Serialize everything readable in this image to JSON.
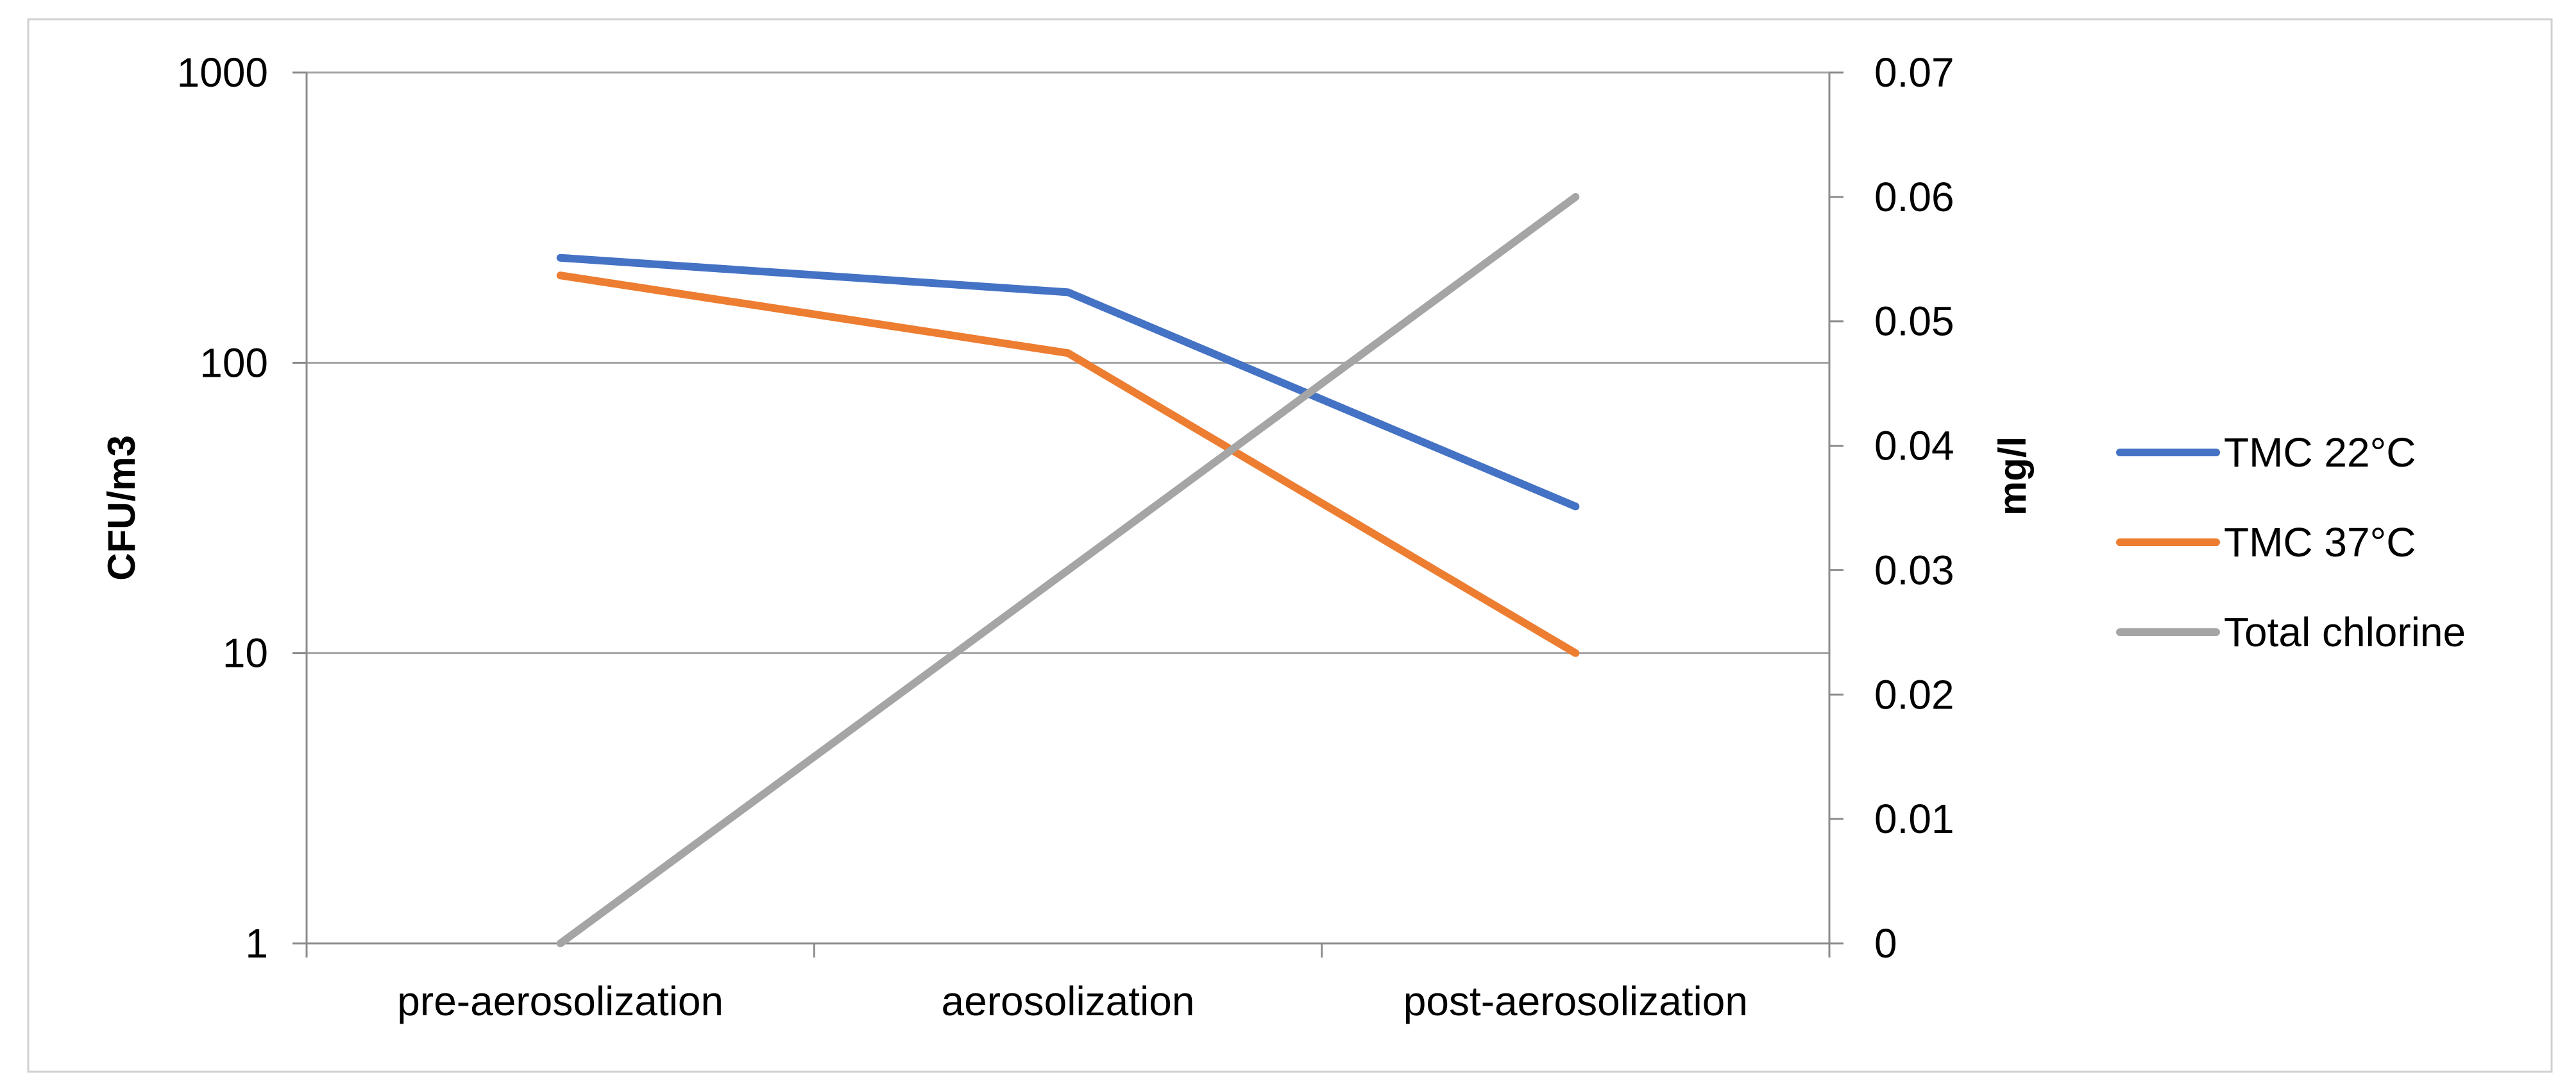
{
  "chart_data": {
    "type": "line",
    "categories": [
      "pre-aerosolization",
      "aerosolization",
      "post-aerosolization"
    ],
    "y_left": {
      "label": "CFU/m3",
      "scale": "log",
      "range": [
        1,
        1000
      ],
      "ticks": [
        1,
        10,
        100,
        1000
      ],
      "tick_labels": [
        "1",
        "10",
        "100",
        "1000"
      ]
    },
    "y_right": {
      "label": "mg/l",
      "scale": "linear",
      "range": [
        0,
        0.07
      ],
      "ticks": [
        0,
        0.01,
        0.02,
        0.03,
        0.04,
        0.05,
        0.06,
        0.07
      ],
      "tick_labels": [
        "0",
        "0.01",
        "0.02",
        "0.03",
        "0.04",
        "0.05",
        "0.06",
        "0.07"
      ]
    },
    "grid": "horizontal major gridlines on left axis",
    "legend_position": "right",
    "series": [
      {
        "name": "TMC 22°C",
        "axis": "left",
        "color": "#4472C4",
        "values": [
          230,
          175,
          32
        ]
      },
      {
        "name": "TMC 37°C",
        "axis": "left",
        "color": "#ED7D31",
        "values": [
          200,
          108,
          10
        ]
      },
      {
        "name": "Total chlorine",
        "axis": "right",
        "color": "#A5A5A5",
        "values": [
          0,
          0.03,
          0.06
        ]
      }
    ]
  }
}
